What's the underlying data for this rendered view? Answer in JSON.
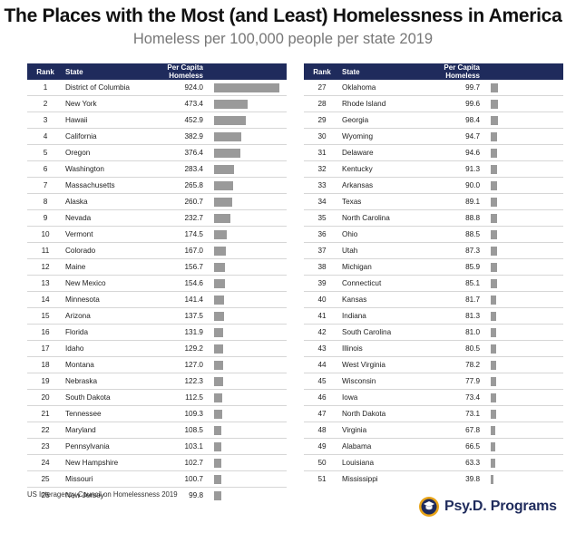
{
  "header": {
    "title": "The Places with the Most (and Least) Homelessness in America",
    "subtitle": "Homeless per 100,000 people per state 2019"
  },
  "table": {
    "col_rank": "Rank",
    "col_state": "State",
    "col_value": "Per Capita Homeless"
  },
  "chart_data": {
    "type": "bar",
    "title": "The Places with the Most (and Least) Homelessness in America",
    "subtitle": "Homeless per 100,000 people per state 2019",
    "orientation": "horizontal",
    "max_value": 924.0,
    "rows": [
      {
        "rank": "1",
        "state": "District of Columbia",
        "value": 924.0,
        "display": "924.0"
      },
      {
        "rank": "2",
        "state": "New York",
        "value": 473.4,
        "display": "473.4"
      },
      {
        "rank": "3",
        "state": "Hawaii",
        "value": 452.9,
        "display": "452.9"
      },
      {
        "rank": "4",
        "state": "California",
        "value": 382.9,
        "display": "382.9"
      },
      {
        "rank": "5",
        "state": "Oregon",
        "value": 376.4,
        "display": "376.4"
      },
      {
        "rank": "6",
        "state": "Washington",
        "value": 283.4,
        "display": "283.4"
      },
      {
        "rank": "7",
        "state": "Massachusetts",
        "value": 265.8,
        "display": "265.8"
      },
      {
        "rank": "8",
        "state": "Alaska",
        "value": 260.7,
        "display": "260.7"
      },
      {
        "rank": "9",
        "state": "Nevada",
        "value": 232.7,
        "display": "232.7"
      },
      {
        "rank": "10",
        "state": "Vermont",
        "value": 174.5,
        "display": "174.5"
      },
      {
        "rank": "11",
        "state": "Colorado",
        "value": 167.0,
        "display": "167.0"
      },
      {
        "rank": "12",
        "state": "Maine",
        "value": 156.7,
        "display": "156.7"
      },
      {
        "rank": "13",
        "state": "New Mexico",
        "value": 154.6,
        "display": "154.6"
      },
      {
        "rank": "14",
        "state": "Minnesota",
        "value": 141.4,
        "display": "141.4"
      },
      {
        "rank": "15",
        "state": "Arizona",
        "value": 137.5,
        "display": "137.5"
      },
      {
        "rank": "16",
        "state": "Florida",
        "value": 131.9,
        "display": "131.9"
      },
      {
        "rank": "17",
        "state": "Idaho",
        "value": 129.2,
        "display": "129.2"
      },
      {
        "rank": "18",
        "state": "Montana",
        "value": 127.0,
        "display": "127.0"
      },
      {
        "rank": "19",
        "state": "Nebraska",
        "value": 122.3,
        "display": "122.3"
      },
      {
        "rank": "20",
        "state": "South Dakota",
        "value": 112.5,
        "display": "112.5"
      },
      {
        "rank": "21",
        "state": "Tennessee",
        "value": 109.3,
        "display": "109.3"
      },
      {
        "rank": "22",
        "state": "Maryland",
        "value": 108.5,
        "display": "108.5"
      },
      {
        "rank": "23",
        "state": "Pennsylvania",
        "value": 103.1,
        "display": "103.1"
      },
      {
        "rank": "24",
        "state": "New Hampshire",
        "value": 102.7,
        "display": "102.7"
      },
      {
        "rank": "25",
        "state": "Missouri",
        "value": 100.7,
        "display": "100.7"
      },
      {
        "rank": "26",
        "state": "New Jersey",
        "value": 99.8,
        "display": "99.8"
      },
      {
        "rank": "27",
        "state": "Oklahoma",
        "value": 99.7,
        "display": "99.7"
      },
      {
        "rank": "28",
        "state": "Rhode Island",
        "value": 99.6,
        "display": "99.6"
      },
      {
        "rank": "29",
        "state": "Georgia",
        "value": 98.4,
        "display": "98.4"
      },
      {
        "rank": "30",
        "state": "Wyoming",
        "value": 94.7,
        "display": "94.7"
      },
      {
        "rank": "31",
        "state": "Delaware",
        "value": 94.6,
        "display": "94.6"
      },
      {
        "rank": "32",
        "state": "Kentucky",
        "value": 91.3,
        "display": "91.3"
      },
      {
        "rank": "33",
        "state": "Arkansas",
        "value": 90.0,
        "display": "90.0"
      },
      {
        "rank": "34",
        "state": "Texas",
        "value": 89.1,
        "display": "89.1"
      },
      {
        "rank": "35",
        "state": "North Carolina",
        "value": 88.8,
        "display": "88.8"
      },
      {
        "rank": "36",
        "state": "Ohio",
        "value": 88.5,
        "display": "88.5"
      },
      {
        "rank": "37",
        "state": "Utah",
        "value": 87.3,
        "display": "87.3"
      },
      {
        "rank": "38",
        "state": "Michigan",
        "value": 85.9,
        "display": "85.9"
      },
      {
        "rank": "39",
        "state": "Connecticut",
        "value": 85.1,
        "display": "85.1"
      },
      {
        "rank": "40",
        "state": "Kansas",
        "value": 81.7,
        "display": "81.7"
      },
      {
        "rank": "41",
        "state": "Indiana",
        "value": 81.3,
        "display": "81.3"
      },
      {
        "rank": "42",
        "state": "South Carolina",
        "value": 81.0,
        "display": "81.0"
      },
      {
        "rank": "43",
        "state": "Illinois",
        "value": 80.5,
        "display": "80.5"
      },
      {
        "rank": "44",
        "state": "West Virginia",
        "value": 78.2,
        "display": "78.2"
      },
      {
        "rank": "45",
        "state": "Wisconsin",
        "value": 77.9,
        "display": "77.9"
      },
      {
        "rank": "46",
        "state": "Iowa",
        "value": 73.4,
        "display": "73.4"
      },
      {
        "rank": "47",
        "state": "North Dakota",
        "value": 73.1,
        "display": "73.1"
      },
      {
        "rank": "48",
        "state": "Virginia",
        "value": 67.8,
        "display": "67.8"
      },
      {
        "rank": "49",
        "state": "Alabama",
        "value": 66.5,
        "display": "66.5"
      },
      {
        "rank": "50",
        "state": "Louisiana",
        "value": 63.3,
        "display": "63.3"
      },
      {
        "rank": "51",
        "state": "Mississippi",
        "value": 39.8,
        "display": "39.8"
      }
    ]
  },
  "footer": {
    "source": "US Interagency Council on Homelessness 2019",
    "brand": "Psy.D. Programs",
    "brand_icon": "graduation-seal-icon"
  },
  "colors": {
    "header_bg": "#1f2b5c",
    "bar": "#9a9a9a",
    "brand": "#1f2b5c",
    "brand_accent": "#e8a317"
  }
}
